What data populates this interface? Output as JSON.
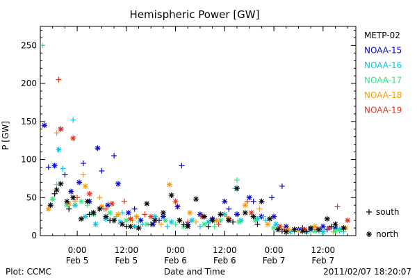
{
  "chart_data": {
    "type": "scatter",
    "title": "Hemispheric Power [GW]",
    "ylabel": "P [GW]",
    "xlabel": "Date and Time",
    "ylim": [
      0,
      275
    ],
    "xlim": [
      "2011-02-04T15:00",
      "2011-02-07T20:00"
    ],
    "y_ticks": [
      0,
      50,
      100,
      150,
      200,
      250
    ],
    "x_ticks": [
      {
        "time": "2011-02-05T00:00",
        "label_top": "0:00",
        "label_bottom": "Feb 5"
      },
      {
        "time": "2011-02-05T12:00",
        "label_top": "12:00",
        "label_bottom": "Feb 5"
      },
      {
        "time": "2011-02-06T00:00",
        "label_top": "0:00",
        "label_bottom": "Feb 6"
      },
      {
        "time": "2011-02-06T12:00",
        "label_top": "12:00",
        "label_bottom": "Feb 6"
      },
      {
        "time": "2011-02-07T00:00",
        "label_top": "0:00",
        "label_bottom": "Feb 7"
      },
      {
        "time": "2011-02-07T12:00",
        "label_top": "12:00",
        "label_bottom": "Feb 7"
      }
    ],
    "grid": false,
    "legend_position": "right",
    "series": [
      {
        "name": "METP-02",
        "color": "#000000",
        "north": [
          [
            "2011-02-04T17:30",
            40
          ],
          [
            "2011-02-04T19:00",
            60
          ],
          [
            "2011-02-04T20:00",
            68
          ],
          [
            "2011-02-04T21:30",
            45
          ],
          [
            "2011-02-04T23:00",
            50
          ],
          [
            "2011-02-05T01:00",
            22
          ],
          [
            "2011-02-05T02:30",
            45
          ],
          [
            "2011-02-05T04:00",
            30
          ],
          [
            "2011-02-05T05:30",
            35
          ],
          [
            "2011-02-05T07:00",
            25
          ],
          [
            "2011-02-05T09:00",
            20
          ],
          [
            "2011-02-05T11:00",
            15
          ],
          [
            "2011-02-05T13:00",
            12
          ],
          [
            "2011-02-05T15:00",
            10
          ],
          [
            "2011-02-05T17:00",
            42
          ],
          [
            "2011-02-05T19:00",
            20
          ],
          [
            "2011-02-05T21:00",
            30
          ],
          [
            "2011-02-05T23:00",
            53
          ],
          [
            "2011-02-06T01:00",
            20
          ],
          [
            "2011-02-06T03:00",
            12
          ],
          [
            "2011-02-06T05:00",
            48
          ],
          [
            "2011-02-06T07:00",
            25
          ],
          [
            "2011-02-06T09:00",
            20
          ],
          [
            "2011-02-06T11:00",
            28
          ],
          [
            "2011-02-06T13:00",
            20
          ],
          [
            "2011-02-06T15:00",
            62
          ],
          [
            "2011-02-06T17:00",
            30
          ],
          [
            "2011-02-06T19:00",
            25
          ],
          [
            "2011-02-06T21:00",
            45
          ],
          [
            "2011-02-06T23:00",
            22
          ],
          [
            "2011-02-07T01:00",
            8
          ],
          [
            "2011-02-07T03:00",
            5
          ],
          [
            "2011-02-07T05:00",
            8
          ],
          [
            "2011-02-07T07:00",
            6
          ],
          [
            "2011-02-07T09:00",
            10
          ],
          [
            "2011-02-07T11:00",
            8
          ],
          [
            "2011-02-07T13:00",
            22
          ],
          [
            "2011-02-07T15:00",
            15
          ],
          [
            "2011-02-07T17:00",
            10
          ]
        ],
        "south": [
          [
            "2011-02-04T18:30",
            55
          ],
          [
            "2011-02-04T22:00",
            35
          ],
          [
            "2011-02-05T03:00",
            28
          ],
          [
            "2011-02-05T08:00",
            20
          ],
          [
            "2011-02-05T12:00",
            12
          ],
          [
            "2011-02-05T18:00",
            15
          ],
          [
            "2011-02-06T02:00",
            15
          ],
          [
            "2011-02-06T08:00",
            12
          ],
          [
            "2011-02-06T14:00",
            18
          ],
          [
            "2011-02-06T20:00",
            15
          ],
          [
            "2011-02-07T02:00",
            6
          ],
          [
            "2011-02-07T08:00",
            5
          ],
          [
            "2011-02-07T14:00",
            12
          ]
        ]
      },
      {
        "name": "NOAA-15",
        "color": "#0000cc",
        "north": [
          [
            "2011-02-04T16:00",
            145
          ],
          [
            "2011-02-04T18:30",
            92
          ],
          [
            "2011-02-04T20:00",
            140
          ],
          [
            "2011-02-04T22:30",
            58
          ],
          [
            "2011-02-05T00:30",
            70
          ],
          [
            "2011-02-05T03:00",
            45
          ],
          [
            "2011-02-05T05:00",
            115
          ],
          [
            "2011-02-05T07:30",
            40
          ],
          [
            "2011-02-05T10:00",
            68
          ],
          [
            "2011-02-05T12:30",
            30
          ],
          [
            "2011-02-05T15:30",
            20
          ],
          [
            "2011-02-05T18:30",
            15
          ],
          [
            "2011-02-05T21:00",
            25
          ],
          [
            "2011-02-06T00:30",
            38
          ],
          [
            "2011-02-06T03:00",
            15
          ],
          [
            "2011-02-06T06:00",
            28
          ],
          [
            "2011-02-06T09:00",
            22
          ],
          [
            "2011-02-06T12:00",
            45
          ],
          [
            "2011-02-06T15:00",
            28
          ],
          [
            "2011-02-06T18:00",
            50
          ],
          [
            "2011-02-06T21:00",
            25
          ],
          [
            "2011-02-07T00:00",
            25
          ],
          [
            "2011-02-07T03:00",
            12
          ],
          [
            "2011-02-07T06:00",
            8
          ],
          [
            "2011-02-07T09:00",
            8
          ],
          [
            "2011-02-07T12:00",
            12
          ],
          [
            "2011-02-07T15:00",
            10
          ]
        ],
        "south": [
          [
            "2011-02-04T17:00",
            90
          ],
          [
            "2011-02-04T21:00",
            80
          ],
          [
            "2011-02-05T01:30",
            95
          ],
          [
            "2011-02-05T06:00",
            85
          ],
          [
            "2011-02-05T09:00",
            105
          ],
          [
            "2011-02-05T14:00",
            35
          ],
          [
            "2011-02-05T20:00",
            20
          ],
          [
            "2011-02-06T01:30",
            92
          ],
          [
            "2011-02-06T07:00",
            25
          ],
          [
            "2011-02-06T13:00",
            35
          ],
          [
            "2011-02-06T19:00",
            45
          ],
          [
            "2011-02-06T23:30",
            50
          ],
          [
            "2011-02-07T02:00",
            65
          ],
          [
            "2011-02-07T07:00",
            10
          ],
          [
            "2011-02-07T13:00",
            8
          ]
        ]
      },
      {
        "name": "NOAA-16",
        "color": "#00c8e6",
        "north": [
          [
            "2011-02-04T19:30",
            113
          ],
          [
            "2011-02-04T23:30",
            40
          ],
          [
            "2011-02-05T02:00",
            25
          ],
          [
            "2011-02-05T04:30",
            15
          ],
          [
            "2011-02-05T07:00",
            22
          ],
          [
            "2011-02-05T10:30",
            18
          ],
          [
            "2011-02-05T14:00",
            12
          ],
          [
            "2011-02-05T19:00",
            25
          ],
          [
            "2011-02-05T23:00",
            18
          ],
          [
            "2011-02-06T04:00",
            20
          ],
          [
            "2011-02-06T08:00",
            18
          ],
          [
            "2011-02-06T12:00",
            28
          ],
          [
            "2011-02-06T16:00",
            20
          ],
          [
            "2011-02-06T20:00",
            22
          ],
          [
            "2011-02-07T00:30",
            15
          ],
          [
            "2011-02-07T04:00",
            5
          ],
          [
            "2011-02-07T08:00",
            5
          ],
          [
            "2011-02-07T12:00",
            5
          ],
          [
            "2011-02-07T16:00",
            8
          ]
        ],
        "south": [
          [
            "2011-02-04T17:30",
            40
          ],
          [
            "2011-02-04T20:30",
            88
          ],
          [
            "2011-02-04T23:00",
            152
          ],
          [
            "2011-02-05T03:30",
            30
          ],
          [
            "2011-02-05T06:30",
            35
          ],
          [
            "2011-02-05T11:00",
            30
          ],
          [
            "2011-02-05T16:00",
            15
          ],
          [
            "2011-02-05T22:00",
            12
          ],
          [
            "2011-02-06T06:00",
            12
          ],
          [
            "2011-02-06T14:30",
            62
          ],
          [
            "2011-02-06T22:00",
            20
          ],
          [
            "2011-02-07T05:00",
            5
          ],
          [
            "2011-02-07T11:00",
            6
          ],
          [
            "2011-02-07T17:00",
            5
          ]
        ]
      },
      {
        "name": "NOAA-17",
        "color": "#33e680",
        "north": [
          [
            "2011-02-04T18:00",
            48
          ],
          [
            "2011-02-04T21:30",
            40
          ],
          [
            "2011-02-05T01:00",
            45
          ],
          [
            "2011-02-05T04:00",
            28
          ],
          [
            "2011-02-05T08:00",
            30
          ],
          [
            "2011-02-05T12:00",
            20
          ],
          [
            "2011-02-05T17:00",
            15
          ],
          [
            "2011-02-05T21:30",
            20
          ],
          [
            "2011-02-06T02:00",
            12
          ],
          [
            "2011-02-06T07:00",
            15
          ],
          [
            "2011-02-06T11:00",
            20
          ],
          [
            "2011-02-06T15:30",
            18
          ],
          [
            "2011-02-06T19:30",
            20
          ],
          [
            "2011-02-07T00:00",
            10
          ],
          [
            "2011-02-07T05:00",
            8
          ],
          [
            "2011-02-07T10:00",
            6
          ],
          [
            "2011-02-07T15:00",
            6
          ]
        ],
        "south": [
          [
            "2011-02-04T15:30",
            250
          ],
          [
            "2011-02-04T19:00",
            67
          ],
          [
            "2011-02-05T02:30",
            40
          ],
          [
            "2011-02-05T09:30",
            25
          ],
          [
            "2011-02-05T15:00",
            18
          ],
          [
            "2011-02-06T00:00",
            15
          ],
          [
            "2011-02-06T09:30",
            12
          ],
          [
            "2011-02-06T15:00",
            73
          ],
          [
            "2011-02-06T21:30",
            25
          ],
          [
            "2011-02-07T03:00",
            5
          ],
          [
            "2011-02-07T09:00",
            5
          ],
          [
            "2011-02-07T16:00",
            6
          ]
        ]
      },
      {
        "name": "NOAA-18",
        "color": "#ff9900",
        "north": [
          [
            "2011-02-04T17:00",
            35
          ],
          [
            "2011-02-04T22:00",
            42
          ],
          [
            "2011-02-05T02:00",
            65
          ],
          [
            "2011-02-05T06:00",
            38
          ],
          [
            "2011-02-05T10:00",
            28
          ],
          [
            "2011-02-05T14:30",
            25
          ],
          [
            "2011-02-05T22:30",
            67
          ],
          [
            "2011-02-06T03:30",
            30
          ],
          [
            "2011-02-06T10:00",
            20
          ],
          [
            "2011-02-06T17:00",
            40
          ],
          [
            "2011-02-06T22:30",
            15
          ],
          [
            "2011-02-07T03:30",
            8
          ],
          [
            "2011-02-07T10:00",
            12
          ],
          [
            "2011-02-07T17:30",
            10
          ]
        ],
        "south": [
          [
            "2011-02-04T19:00",
            135
          ],
          [
            "2011-02-04T23:30",
            45
          ],
          [
            "2011-02-05T01:30",
            80
          ],
          [
            "2011-02-05T05:30",
            50
          ],
          [
            "2011-02-05T13:30",
            20
          ],
          [
            "2011-02-05T20:30",
            15
          ],
          [
            "2011-02-06T05:00",
            18
          ],
          [
            "2011-02-06T12:30",
            25
          ],
          [
            "2011-02-06T20:30",
            35
          ],
          [
            "2011-02-07T06:00",
            6
          ],
          [
            "2011-02-07T14:30",
            5
          ]
        ]
      },
      {
        "name": "NOAA-19",
        "color": "#e63319",
        "north": [
          [
            "2011-02-04T20:00",
            140
          ],
          [
            "2011-02-04T23:00",
            128
          ],
          [
            "2011-02-05T03:00",
            55
          ],
          [
            "2011-02-05T08:30",
            42
          ],
          [
            "2011-02-05T13:00",
            22
          ],
          [
            "2011-02-05T18:00",
            25
          ],
          [
            "2011-02-06T00:00",
            45
          ],
          [
            "2011-02-06T06:30",
            25
          ],
          [
            "2011-02-06T13:00",
            22
          ],
          [
            "2011-02-06T18:30",
            30
          ],
          [
            "2011-02-07T01:30",
            12
          ],
          [
            "2011-02-07T07:30",
            8
          ],
          [
            "2011-02-07T13:30",
            10
          ],
          [
            "2011-02-07T18:00",
            20
          ]
        ],
        "south": [
          [
            "2011-02-04T19:30",
            205
          ],
          [
            "2011-02-05T00:00",
            50
          ],
          [
            "2011-02-05T07:00",
            35
          ],
          [
            "2011-02-05T11:30",
            45
          ],
          [
            "2011-02-05T16:30",
            28
          ],
          [
            "2011-02-06T03:00",
            18
          ],
          [
            "2011-02-06T10:30",
            15
          ],
          [
            "2011-02-06T17:30",
            45
          ],
          [
            "2011-02-07T02:30",
            8
          ],
          [
            "2011-02-07T10:30",
            8
          ],
          [
            "2011-02-07T15:30",
            38
          ]
        ]
      }
    ],
    "marker_legend": [
      {
        "symbol": "+",
        "label": "south"
      },
      {
        "symbol": "*",
        "label": "north"
      }
    ]
  },
  "footer": {
    "left": "Plot: CCMC",
    "center": "Date and Time",
    "right": "2011/02/07 18:20:07"
  }
}
